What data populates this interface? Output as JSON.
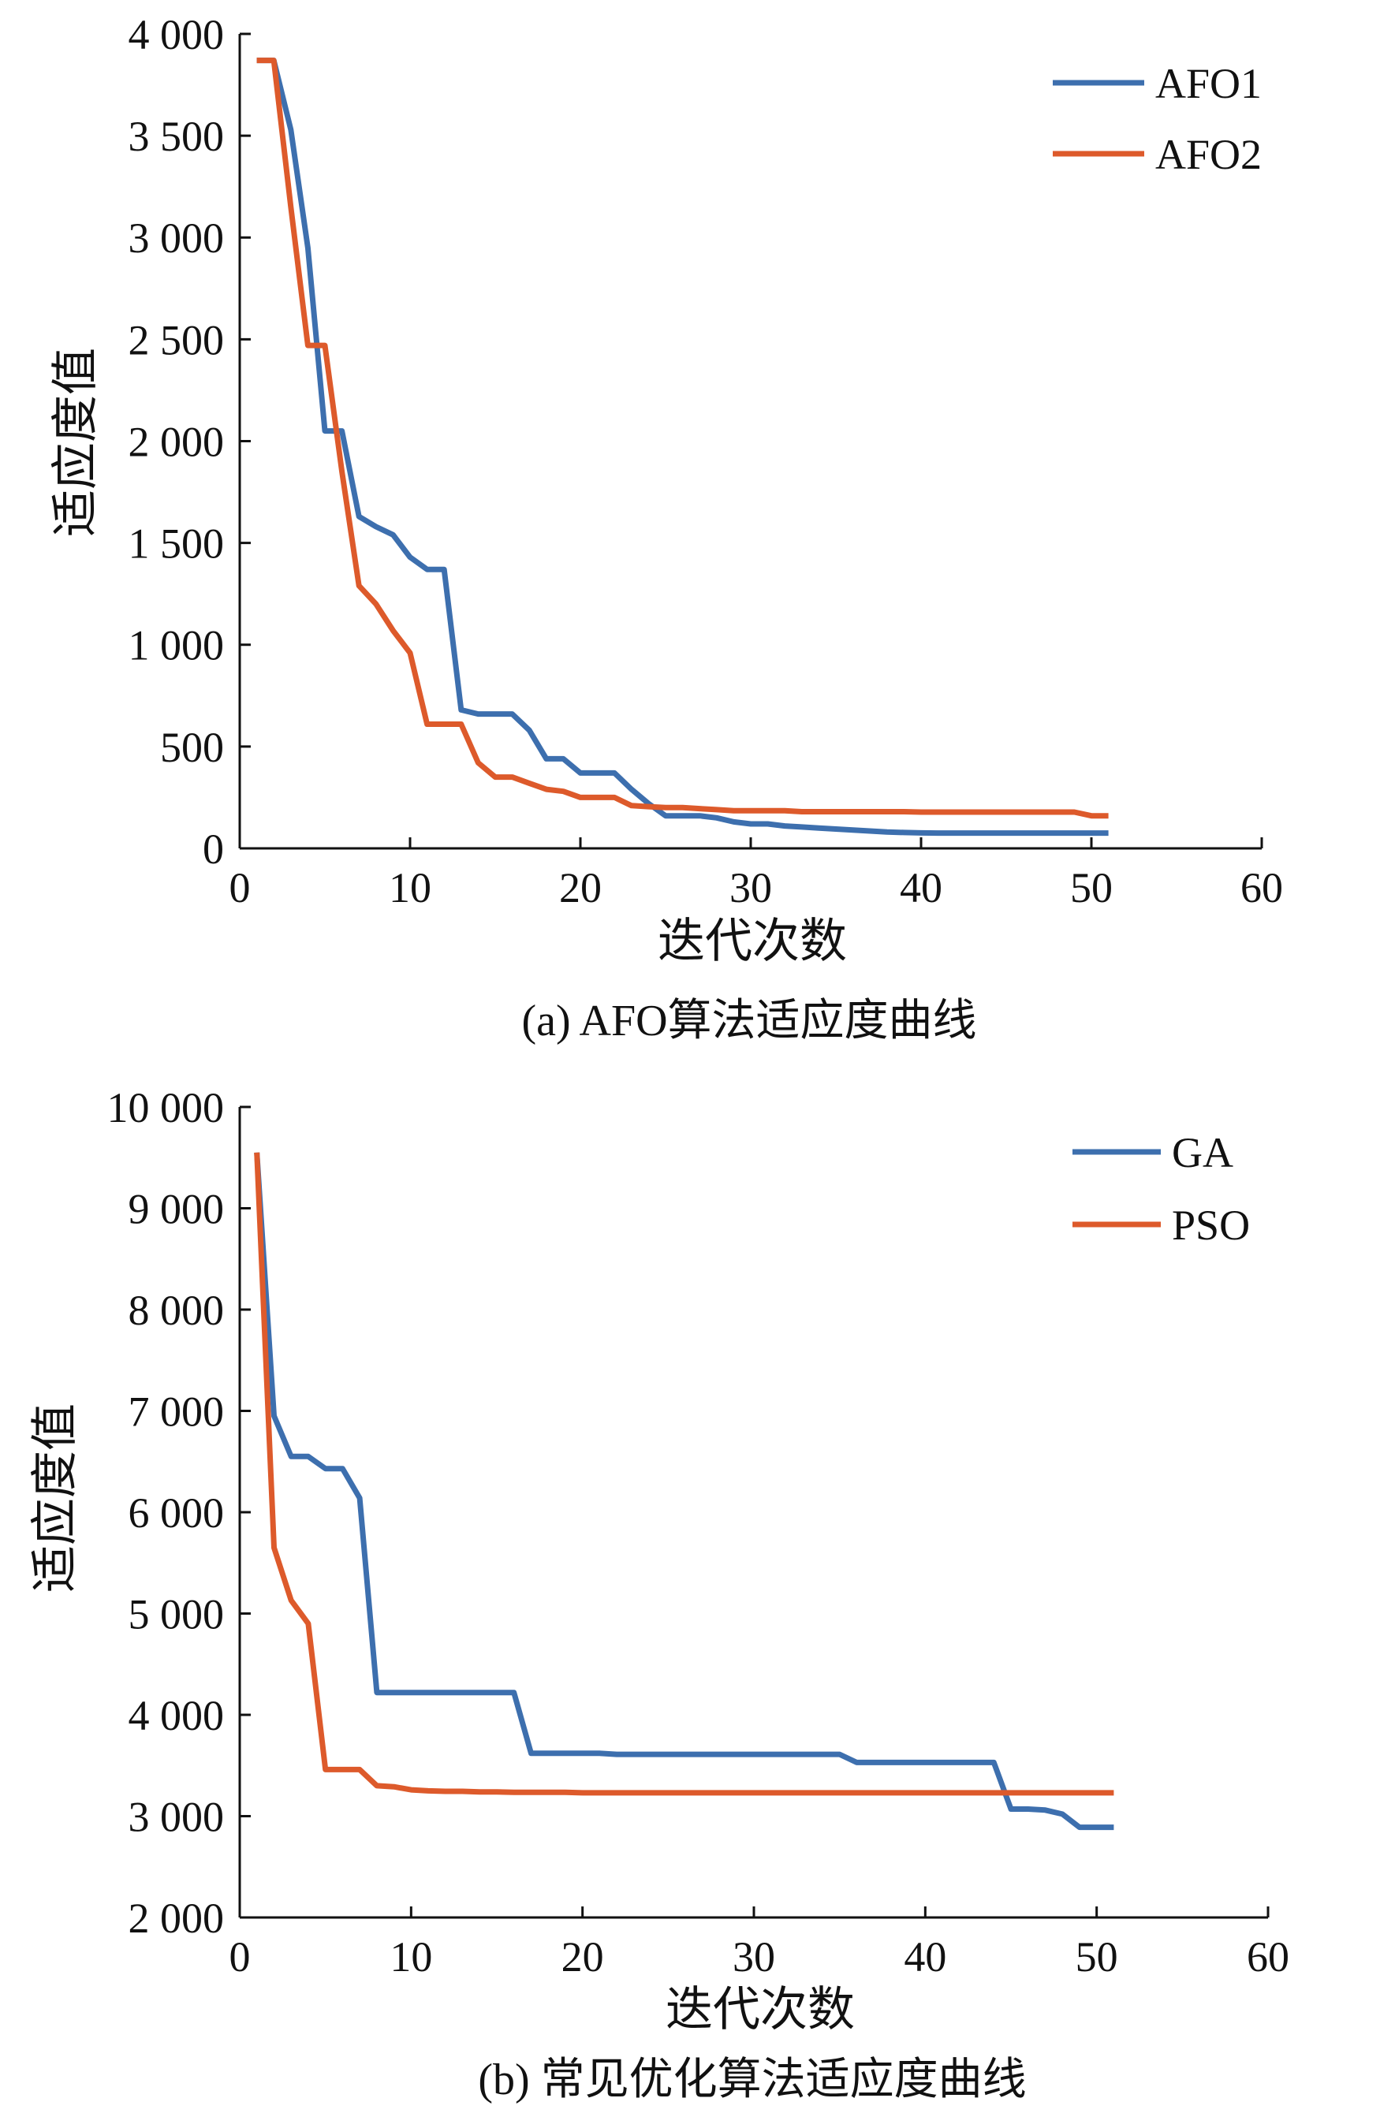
{
  "chart_data": [
    {
      "type": "line",
      "caption": "(a) AFO算法适应度曲线",
      "xlabel": "迭代次数",
      "ylabel": "适应度值",
      "xlim": [
        0,
        60
      ],
      "ylim": [
        0,
        4000
      ],
      "grid": false,
      "legend": "top-right",
      "xticks": [
        0,
        10,
        20,
        30,
        40,
        50,
        60
      ],
      "xtick_labels": [
        "0",
        "10",
        "20",
        "30",
        "40",
        "50",
        "60"
      ],
      "yticks": [
        0,
        500,
        1000,
        1500,
        2000,
        2500,
        3000,
        3500,
        4000
      ],
      "ytick_labels": [
        "0",
        "500",
        "1 000",
        "1 500",
        "2 000",
        "2 500",
        "3 000",
        "3 500",
        "4 000"
      ],
      "x": [
        1,
        2,
        3,
        4,
        5,
        6,
        7,
        8,
        9,
        10,
        11,
        12,
        13,
        14,
        15,
        16,
        17,
        18,
        19,
        20,
        21,
        22,
        23,
        24,
        25,
        26,
        27,
        28,
        29,
        30,
        31,
        32,
        33,
        34,
        35,
        36,
        37,
        38,
        39,
        40,
        41,
        42,
        43,
        44,
        45,
        46,
        47,
        48,
        49,
        50,
        51
      ],
      "series": [
        {
          "name": "AFO1",
          "color": "#3d6fae",
          "values": [
            3870,
            3870,
            3530,
            2950,
            2050,
            2050,
            1630,
            1580,
            1540,
            1430,
            1370,
            1370,
            680,
            660,
            660,
            660,
            580,
            440,
            440,
            370,
            370,
            370,
            290,
            220,
            160,
            160,
            160,
            150,
            130,
            120,
            120,
            110,
            105,
            100,
            95,
            90,
            85,
            80,
            78,
            76,
            75,
            75,
            75,
            75,
            75,
            75,
            75,
            75,
            75,
            75,
            75
          ]
        },
        {
          "name": "AFO2",
          "color": "#dd5a2b",
          "values": [
            3870,
            3870,
            3150,
            2470,
            2470,
            1850,
            1290,
            1200,
            1070,
            960,
            610,
            610,
            610,
            420,
            350,
            350,
            320,
            290,
            280,
            250,
            250,
            250,
            210,
            205,
            200,
            200,
            195,
            190,
            185,
            185,
            185,
            185,
            180,
            180,
            180,
            180,
            180,
            180,
            180,
            178,
            178,
            178,
            178,
            178,
            178,
            178,
            178,
            178,
            178,
            160,
            160
          ]
        }
      ]
    },
    {
      "type": "line",
      "caption": "(b) 常见优化算法适应度曲线",
      "xlabel": "迭代次数",
      "ylabel": "适应度值",
      "xlim": [
        0,
        60
      ],
      "ylim": [
        2000,
        10000
      ],
      "grid": false,
      "legend": "top-right",
      "xticks": [
        0,
        10,
        20,
        30,
        40,
        50,
        60
      ],
      "xtick_labels": [
        "0",
        "10",
        "20",
        "30",
        "40",
        "50",
        "60"
      ],
      "yticks": [
        2000,
        3000,
        4000,
        5000,
        6000,
        7000,
        8000,
        9000,
        10000
      ],
      "ytick_labels": [
        "2 000",
        "3 000",
        "4 000",
        "5 000",
        "6 000",
        "7 000",
        "8 000",
        "9 000",
        "10 000"
      ],
      "x": [
        1,
        2,
        3,
        4,
        5,
        6,
        7,
        8,
        9,
        10,
        11,
        12,
        13,
        14,
        15,
        16,
        17,
        18,
        19,
        20,
        21,
        22,
        23,
        24,
        25,
        26,
        27,
        28,
        29,
        30,
        31,
        32,
        33,
        34,
        35,
        36,
        37,
        38,
        39,
        40,
        41,
        42,
        43,
        44,
        45,
        46,
        47,
        48,
        49,
        50,
        51
      ],
      "series": [
        {
          "name": "GA",
          "color": "#3d6fae",
          "values": [
            9550,
            6950,
            6550,
            6550,
            6430,
            6430,
            6140,
            4220,
            4220,
            4220,
            4220,
            4220,
            4220,
            4220,
            4220,
            4220,
            3620,
            3620,
            3620,
            3620,
            3620,
            3610,
            3610,
            3610,
            3610,
            3610,
            3610,
            3610,
            3610,
            3610,
            3610,
            3610,
            3610,
            3610,
            3610,
            3530,
            3530,
            3530,
            3530,
            3530,
            3530,
            3530,
            3530,
            3530,
            3070,
            3070,
            3060,
            3020,
            2890,
            2890,
            2890
          ]
        },
        {
          "name": "PSO",
          "color": "#dd5a2b",
          "values": [
            9550,
            5650,
            5130,
            4900,
            3460,
            3460,
            3460,
            3300,
            3290,
            3260,
            3250,
            3245,
            3245,
            3240,
            3240,
            3235,
            3235,
            3235,
            3235,
            3230,
            3230,
            3230,
            3230,
            3230,
            3230,
            3230,
            3230,
            3230,
            3230,
            3230,
            3230,
            3230,
            3230,
            3230,
            3230,
            3230,
            3230,
            3230,
            3230,
            3230,
            3230,
            3230,
            3230,
            3230,
            3230,
            3230,
            3230,
            3230,
            3230,
            3230,
            3230
          ]
        }
      ]
    }
  ]
}
